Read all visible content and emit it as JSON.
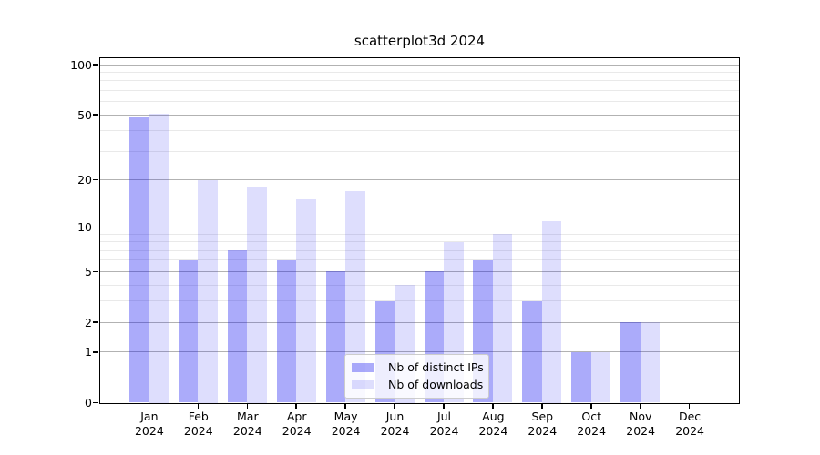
{
  "title": "scatterplot3d 2024",
  "colors": {
    "bar_distinct_ips": "rgba(10,10,240,0.34)",
    "bar_downloads": "rgba(10,10,240,0.135)",
    "grid_major": "#b0b0b0",
    "grid_minor": "#eaeaea",
    "spine": "#000000",
    "background": "#ffffff",
    "legend_border": "#cccccc"
  },
  "chart_data": {
    "type": "bar",
    "title": "scatterplot3d 2024",
    "year": "2024",
    "months": [
      "Jan",
      "Feb",
      "Mar",
      "Apr",
      "May",
      "Jun",
      "Jul",
      "Aug",
      "Sep",
      "Oct",
      "Nov",
      "Dec"
    ],
    "categories": [
      "Jan 2024",
      "Feb 2024",
      "Mar 2024",
      "Apr 2024",
      "May 2024",
      "Jun 2024",
      "Jul 2024",
      "Aug 2024",
      "Sep 2024",
      "Oct 2024",
      "Nov 2024",
      "Dec 2024"
    ],
    "series": [
      {
        "name": "Nb of distinct IPs",
        "key": "distinct-ips",
        "color": "rgba(10,10,240,0.34)",
        "values": [
          48,
          6,
          7,
          6,
          5,
          3,
          5,
          6,
          3,
          1,
          2,
          0
        ]
      },
      {
        "name": "Nb of downloads",
        "key": "downloads",
        "color": "rgba(10,10,240,0.135)",
        "values": [
          51,
          20,
          18,
          15,
          17,
          4,
          8,
          9,
          11,
          1,
          2,
          0
        ]
      }
    ],
    "xlabel": "",
    "ylabel": "",
    "yscale": "log1p",
    "ylim": [
      0,
      110
    ],
    "y_major_ticks": [
      0,
      1,
      2,
      5,
      10,
      20,
      50,
      100
    ],
    "y_minor_gridlines": [
      3,
      4,
      6,
      7,
      8,
      9,
      30,
      40,
      60,
      70,
      80,
      90
    ],
    "grid": true,
    "legend_position": "lower center"
  }
}
